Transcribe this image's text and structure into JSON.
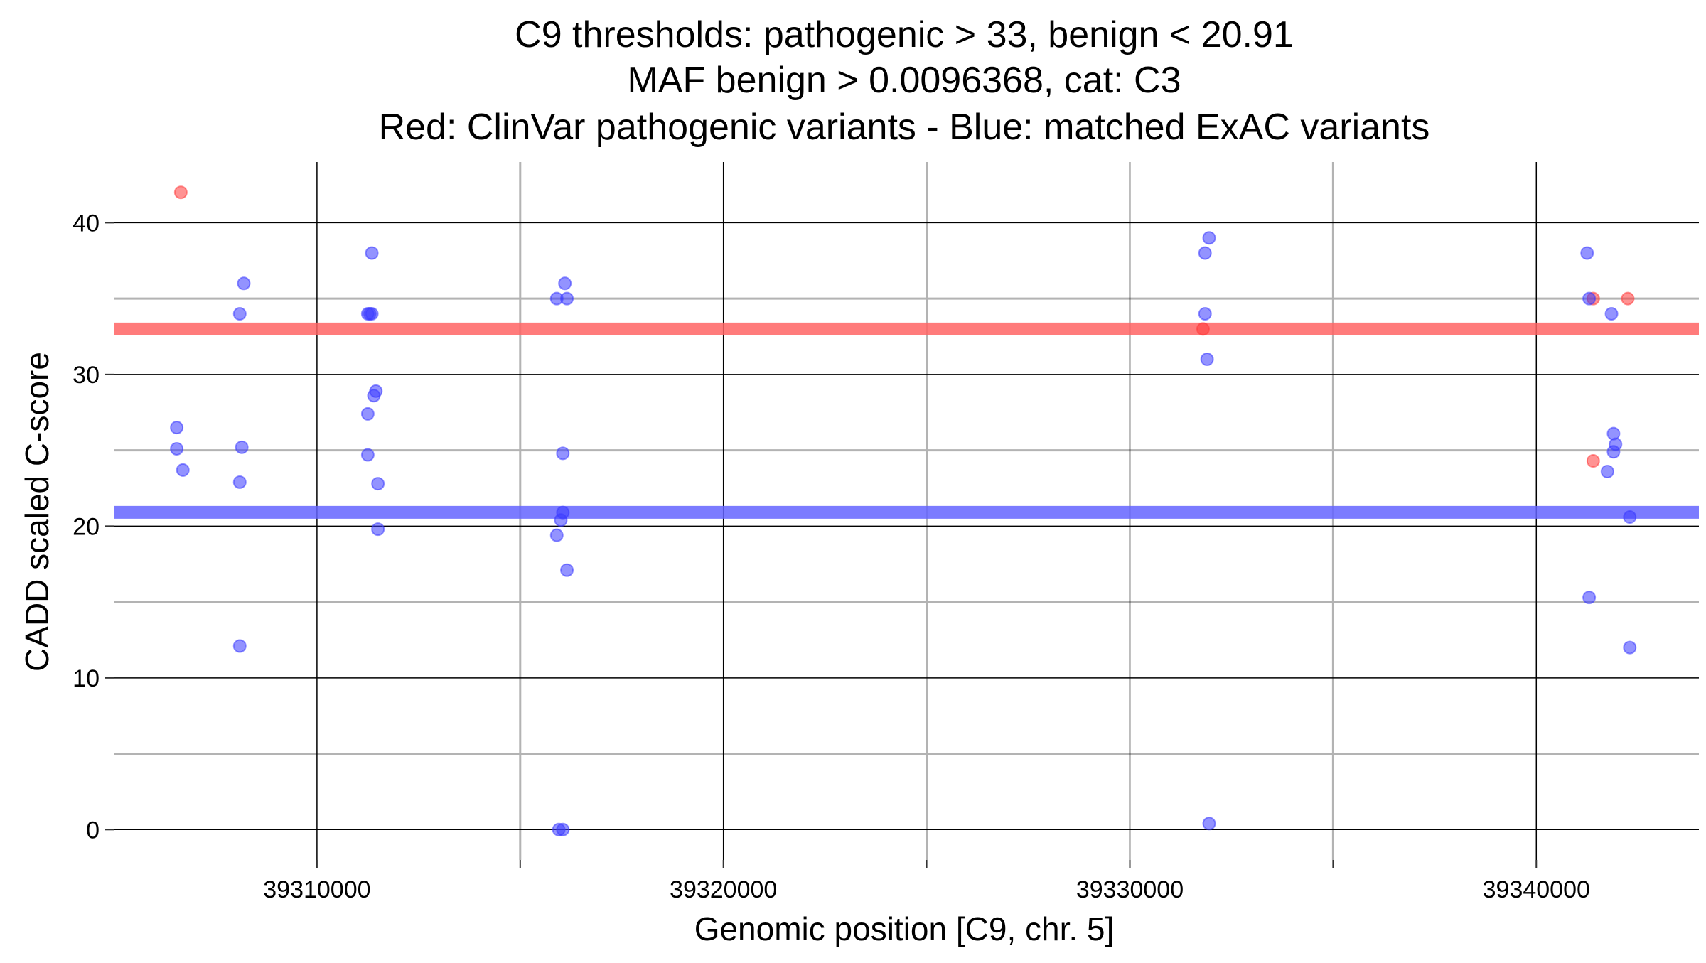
{
  "chart_data": {
    "type": "scatter",
    "title_lines": [
      "C9 thresholds: pathogenic > 33, benign < 20.91",
      "MAF benign > 0.0096368, cat: C3",
      "Red: ClinVar pathogenic variants - Blue: matched ExAC variants"
    ],
    "xlabel": "Genomic position [C9, chr. 5]",
    "ylabel": "CADD scaled C-score",
    "xlim": [
      39305000,
      39344000
    ],
    "ylim": [
      -2,
      44
    ],
    "x_major_ticks": [
      39310000,
      39320000,
      39330000,
      39340000
    ],
    "x_minor_ticks": [
      39315000,
      39325000,
      39335000
    ],
    "x_tick_labels": [
      "39310000",
      "39320000",
      "39330000",
      "39340000"
    ],
    "y_major_ticks": [
      0,
      10,
      20,
      30,
      40
    ],
    "y_minor_ticks": [
      5,
      15,
      25,
      35
    ],
    "y_tick_labels": [
      "0",
      "10",
      "20",
      "30",
      "40"
    ],
    "thresholds": [
      {
        "name": "pathogenic",
        "value": 33,
        "color": "#ff6464"
      },
      {
        "name": "benign",
        "value": 20.91,
        "color": "#6464ff"
      }
    ],
    "series": [
      {
        "name": "ClinVar pathogenic variants",
        "color": "#ff3b3b",
        "points": [
          {
            "x": 39306650,
            "y": 42
          },
          {
            "x": 39331800,
            "y": 33
          },
          {
            "x": 39341400,
            "y": 35
          },
          {
            "x": 39342250,
            "y": 35
          },
          {
            "x": 39341400,
            "y": 24.3
          }
        ]
      },
      {
        "name": "matched ExAC variants",
        "color": "#3b3bff",
        "points": [
          {
            "x": 39306550,
            "y": 26.5
          },
          {
            "x": 39306550,
            "y": 25.1
          },
          {
            "x": 39306700,
            "y": 23.7
          },
          {
            "x": 39308200,
            "y": 36
          },
          {
            "x": 39308100,
            "y": 34
          },
          {
            "x": 39308150,
            "y": 25.2
          },
          {
            "x": 39308100,
            "y": 22.9
          },
          {
            "x": 39308100,
            "y": 12.1
          },
          {
            "x": 39311350,
            "y": 38
          },
          {
            "x": 39311250,
            "y": 34
          },
          {
            "x": 39311300,
            "y": 34
          },
          {
            "x": 39311350,
            "y": 34
          },
          {
            "x": 39311450,
            "y": 28.9
          },
          {
            "x": 39311400,
            "y": 28.6
          },
          {
            "x": 39311250,
            "y": 27.4
          },
          {
            "x": 39311250,
            "y": 24.7
          },
          {
            "x": 39311500,
            "y": 22.8
          },
          {
            "x": 39311500,
            "y": 19.8
          },
          {
            "x": 39316100,
            "y": 36
          },
          {
            "x": 39315900,
            "y": 35
          },
          {
            "x": 39316150,
            "y": 35
          },
          {
            "x": 39316050,
            "y": 24.8
          },
          {
            "x": 39316050,
            "y": 20.9
          },
          {
            "x": 39316000,
            "y": 20.4
          },
          {
            "x": 39315900,
            "y": 19.4
          },
          {
            "x": 39316150,
            "y": 17.1
          },
          {
            "x": 39315950,
            "y": 0
          },
          {
            "x": 39316050,
            "y": 0
          },
          {
            "x": 39331950,
            "y": 39
          },
          {
            "x": 39331850,
            "y": 38
          },
          {
            "x": 39331850,
            "y": 34
          },
          {
            "x": 39331900,
            "y": 31
          },
          {
            "x": 39331950,
            "y": 0.4
          },
          {
            "x": 39341250,
            "y": 38
          },
          {
            "x": 39341300,
            "y": 35
          },
          {
            "x": 39341850,
            "y": 34
          },
          {
            "x": 39341900,
            "y": 26.1
          },
          {
            "x": 39341950,
            "y": 25.4
          },
          {
            "x": 39341900,
            "y": 24.9
          },
          {
            "x": 39341750,
            "y": 23.6
          },
          {
            "x": 39342300,
            "y": 20.6
          },
          {
            "x": 39341300,
            "y": 15.3
          },
          {
            "x": 39342300,
            "y": 12
          }
        ]
      }
    ]
  }
}
